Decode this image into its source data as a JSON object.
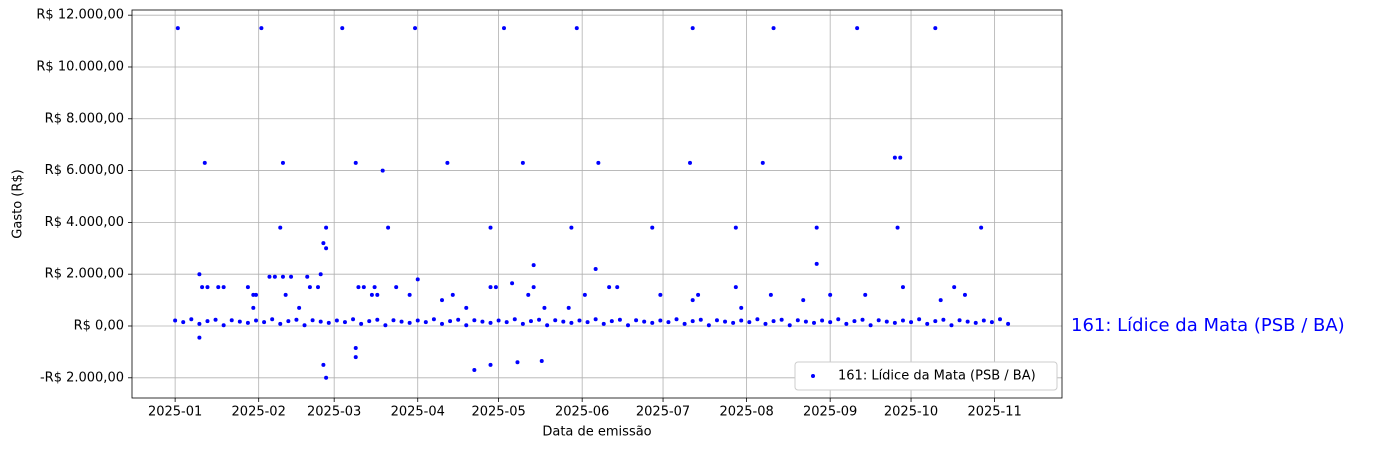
{
  "chart_data": {
    "type": "scatter",
    "x_label": "Data de emissão",
    "y_label": "Gasto (R$)",
    "annotation": "161: Lídice da Mata (PSB / BA)",
    "legend": "lower right",
    "grid": true,
    "xlim": [
      -16,
      329
    ],
    "ylim": [
      -2780,
      12200
    ],
    "xticks": [
      {
        "value": 0,
        "label": "2025-01"
      },
      {
        "value": 31,
        "label": "2025-02"
      },
      {
        "value": 59,
        "label": "2025-03"
      },
      {
        "value": 90,
        "label": "2025-04"
      },
      {
        "value": 120,
        "label": "2025-05"
      },
      {
        "value": 151,
        "label": "2025-06"
      },
      {
        "value": 181,
        "label": "2025-07"
      },
      {
        "value": 212,
        "label": "2025-08"
      },
      {
        "value": 243,
        "label": "2025-09"
      },
      {
        "value": 273,
        "label": "2025-10"
      },
      {
        "value": 304,
        "label": "2025-11"
      }
    ],
    "yticks": [
      {
        "value": -2000,
        "label": "-R$ 2.000,00"
      },
      {
        "value": 0,
        "label": "R$ 0,00"
      },
      {
        "value": 2000,
        "label": "R$ 2.000,00"
      },
      {
        "value": 4000,
        "label": "R$ 4.000,00"
      },
      {
        "value": 6000,
        "label": "R$ 6.000,00"
      },
      {
        "value": 8000,
        "label": "R$ 8.000,00"
      },
      {
        "value": 10000,
        "label": "R$ 10.000,00"
      },
      {
        "value": 12000,
        "label": "R$ 12.000,00"
      }
    ],
    "series": [
      {
        "name": "161: Lídice da Mata (PSB / BA)",
        "color": "#0000ff",
        "x": [
          0,
          3,
          6,
          9,
          12,
          15,
          18,
          21,
          24,
          27,
          30,
          33,
          36,
          39,
          42,
          45,
          48,
          51,
          54,
          57,
          60,
          63,
          66,
          69,
          72,
          75,
          78,
          81,
          84,
          87,
          90,
          93,
          96,
          99,
          102,
          105,
          108,
          111,
          114,
          117,
          120,
          123,
          126,
          129,
          132,
          135,
          138,
          141,
          144,
          147,
          150,
          153,
          156,
          159,
          162,
          165,
          168,
          171,
          174,
          177,
          180,
          183,
          186,
          189,
          192,
          195,
          198,
          201,
          204,
          207,
          210,
          213,
          216,
          219,
          222,
          225,
          228,
          231,
          234,
          237,
          240,
          243,
          246,
          249,
          252,
          255,
          258,
          261,
          264,
          267,
          270,
          273,
          276,
          279,
          282,
          285,
          288,
          291,
          294,
          297,
          300,
          303,
          306,
          309,
          1,
          32,
          62,
          89,
          122,
          149,
          192,
          222,
          253,
          282,
          11,
          40,
          67,
          101,
          129,
          157,
          191,
          218,
          267,
          269,
          77,
          39,
          56,
          79,
          117,
          147,
          177,
          208,
          238,
          268,
          299,
          9,
          54,
          55,
          56,
          55,
          56,
          67,
          67,
          9,
          35,
          37,
          40,
          43,
          49,
          133,
          156,
          238,
          125,
          90,
          111,
          117,
          127,
          136,
          10,
          12,
          16,
          18,
          27,
          50,
          53,
          68,
          70,
          74,
          82,
          117,
          119,
          133,
          161,
          164,
          208,
          270,
          289,
          29,
          30,
          41,
          73,
          75,
          87,
          103,
          131,
          152,
          180,
          194,
          221,
          243,
          256,
          293,
          99,
          192,
          233,
          284,
          29,
          46,
          108,
          137,
          146,
          210
        ],
        "values": [
          210,
          150,
          260,
          80,
          190,
          240,
          30,
          220,
          170,
          120,
          210,
          150,
          260,
          80,
          190,
          240,
          30,
          220,
          170,
          120,
          210,
          150,
          260,
          80,
          190,
          240,
          30,
          220,
          170,
          120,
          210,
          150,
          260,
          80,
          190,
          240,
          30,
          220,
          170,
          120,
          210,
          150,
          260,
          80,
          190,
          240,
          30,
          220,
          170,
          120,
          210,
          150,
          260,
          80,
          190,
          240,
          30,
          220,
          170,
          120,
          210,
          150,
          260,
          80,
          190,
          240,
          30,
          220,
          170,
          120,
          210,
          150,
          260,
          80,
          190,
          240,
          30,
          220,
          170,
          120,
          210,
          150,
          260,
          80,
          190,
          240,
          30,
          220,
          170,
          120,
          210,
          150,
          260,
          80,
          190,
          240,
          30,
          220,
          170,
          120,
          210,
          150,
          260,
          80,
          11500,
          11500,
          11500,
          11500,
          11500,
          11500,
          11500,
          11500,
          11500,
          11500,
          6300,
          6300,
          6300,
          6300,
          6300,
          6300,
          6300,
          6300,
          6500,
          6500,
          6000,
          3800,
          3800,
          3800,
          3800,
          3800,
          3800,
          3800,
          3800,
          3800,
          3800,
          2000,
          2000,
          3200,
          3000,
          -1500,
          -2000,
          -1200,
          -850,
          -450,
          1900,
          1900,
          1900,
          1900,
          1900,
          2350,
          2200,
          2400,
          1650,
          1800,
          -1700,
          -1500,
          -1400,
          -1350,
          1500,
          1500,
          1500,
          1500,
          1500,
          1500,
          1500,
          1500,
          1500,
          1500,
          1500,
          1500,
          1500,
          1500,
          1500,
          1500,
          1500,
          1500,
          1500,
          1200,
          1200,
          1200,
          1200,
          1200,
          1200,
          1200,
          1200,
          1200,
          1200,
          1200,
          1200,
          1200,
          1200,
          1200,
          1000,
          1000,
          1000,
          1000,
          700,
          700,
          700,
          700,
          700,
          700
        ]
      }
    ]
  }
}
